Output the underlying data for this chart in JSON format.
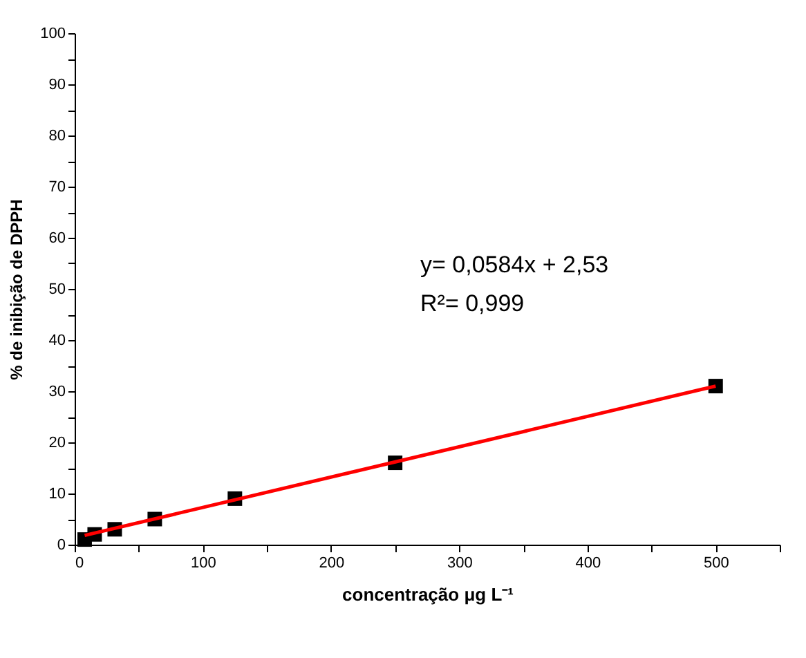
{
  "chart_data": {
    "type": "scatter",
    "xlabel": "concentração μg L⁻¹",
    "ylabel": "% de inibição de DPPH",
    "xlim": [
      0,
      550
    ],
    "ylim": [
      0,
      100
    ],
    "xticks": [
      0,
      {
        "value": 50,
        "label": null
      },
      100,
      {
        "value": 150,
        "label": null
      },
      200,
      {
        "value": 250,
        "label": null
      },
      300,
      {
        "value": 350,
        "label": null
      },
      400,
      {
        "value": 450,
        "label": null
      },
      500,
      {
        "value": 550,
        "label": null
      }
    ],
    "yticks": [
      0,
      {
        "value": 5,
        "label": null
      },
      10,
      {
        "value": 15,
        "label": null
      },
      20,
      {
        "value": 25,
        "label": null
      },
      30,
      {
        "value": 35,
        "label": null
      },
      40,
      {
        "value": 45,
        "label": null
      },
      50,
      {
        "value": 55,
        "label": null
      },
      60,
      {
        "value": 65,
        "label": null
      },
      70,
      {
        "value": 75,
        "label": null
      },
      80,
      {
        "value": 85,
        "label": null
      },
      90,
      {
        "value": 95,
        "label": null
      },
      100
    ],
    "grid": false,
    "legend": false,
    "series": [
      {
        "type": "scatter",
        "color": "#000000",
        "marker": "square",
        "x": [
          7.8,
          15.6,
          31.25,
          62.5,
          125,
          250,
          500
        ],
        "values": [
          1,
          2,
          3,
          5,
          9,
          16,
          31
        ]
      },
      {
        "type": "line",
        "color": "#ff0000",
        "line_style": "solid",
        "marker": "none",
        "x": [
          7.8,
          500
        ],
        "values": [
          1.8,
          31
        ]
      }
    ],
    "annotations": [
      "y= 0,0584x + 2,53",
      "R²= 0,999"
    ]
  }
}
